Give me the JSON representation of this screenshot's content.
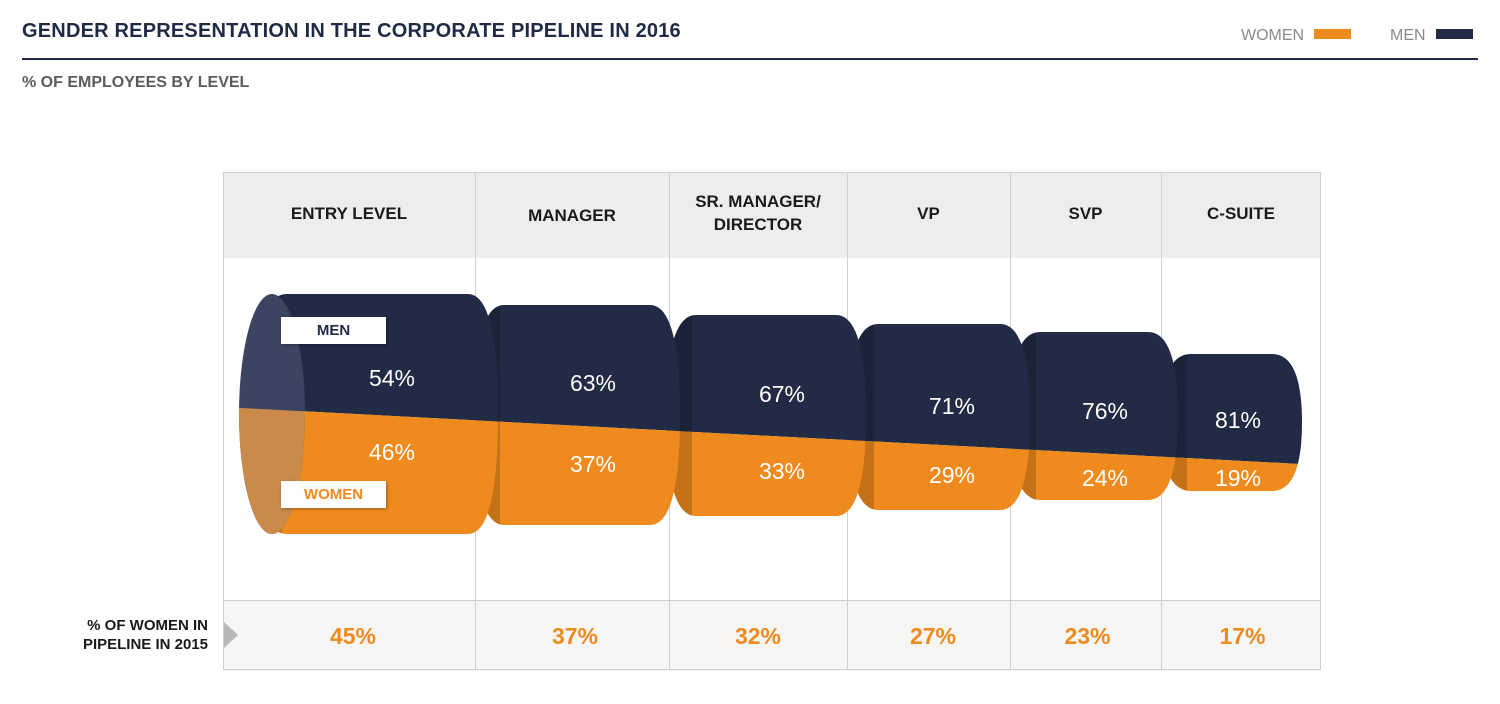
{
  "header": {
    "title": "GENDER REPRESENTATION IN THE CORPORATE PIPELINE IN 2016",
    "subtitle": "% OF EMPLOYEES BY LEVEL"
  },
  "legend": {
    "women_label": "WOMEN",
    "men_label": "MEN",
    "women_color": "#ef8a1e",
    "men_color": "#222b45"
  },
  "tags": {
    "men": "MEN",
    "women": "WOMEN"
  },
  "columns": [
    {
      "line1": "ENTRY LEVEL",
      "line2": ""
    },
    {
      "line1": "MANAGER",
      "line2": ""
    },
    {
      "line1": "SR. MANAGER/",
      "line2": "DIRECTOR"
    },
    {
      "line1": "VP",
      "line2": ""
    },
    {
      "line1": "SVP",
      "line2": ""
    },
    {
      "line1": "C-SUITE",
      "line2": ""
    }
  ],
  "previous": {
    "label_line1": "% OF WOMEN IN",
    "label_line2": "PIPELINE IN 2015",
    "values": [
      "45%",
      "37%",
      "32%",
      "27%",
      "23%",
      "17%"
    ]
  },
  "chart_data": {
    "type": "bar",
    "title": "GENDER REPRESENTATION IN THE CORPORATE PIPELINE IN 2016",
    "subtitle": "% OF EMPLOYEES BY LEVEL",
    "categories": [
      "ENTRY LEVEL",
      "MANAGER",
      "SR. MANAGER/DIRECTOR",
      "VP",
      "SVP",
      "C-SUITE"
    ],
    "series": [
      {
        "name": "MEN",
        "values": [
          54,
          63,
          67,
          71,
          76,
          81
        ],
        "labels": [
          "54%",
          "63%",
          "67%",
          "71%",
          "76%",
          "81%"
        ]
      },
      {
        "name": "WOMEN",
        "values": [
          46,
          37,
          33,
          29,
          24,
          19
        ],
        "labels": [
          "46%",
          "37%",
          "33%",
          "29%",
          "24%",
          "19%"
        ]
      }
    ],
    "previous_year_women_2015": [
      45,
      37,
      32,
      27,
      23,
      17
    ],
    "stacked": true,
    "unit": "%"
  }
}
